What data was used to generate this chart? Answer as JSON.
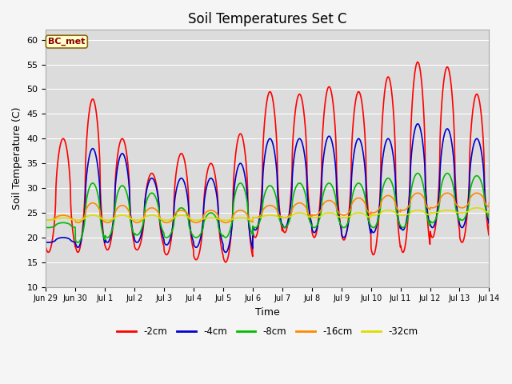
{
  "title": "Soil Temperatures Set C",
  "xlabel": "Time",
  "ylabel": "Soil Temperature (C)",
  "ylim": [
    10,
    62
  ],
  "yticks": [
    10,
    15,
    20,
    25,
    30,
    35,
    40,
    45,
    50,
    55,
    60
  ],
  "annotation": "BC_met",
  "plot_bg_color": "#dcdcdc",
  "fig_bg_color": "#f5f5f5",
  "series_colors": {
    "-2cm": "#ff0000",
    "-4cm": "#0000cc",
    "-8cm": "#00bb00",
    "-16cm": "#ff8800",
    "-32cm": "#dddd00"
  },
  "xtick_labels": [
    "Jun 29",
    "Jun 30",
    "Jul 1",
    "Jul 2",
    "Jul 3",
    "Jul 4",
    "Jul 5",
    "Jul 6",
    "Jul 7",
    "Jul 8",
    "Jul 9",
    "Jul 10",
    "Jul 11",
    "Jul 12",
    "Jul 13",
    "Jul 14"
  ],
  "peaks_2cm": [
    40,
    48,
    40,
    33,
    37,
    35,
    41,
    49.5,
    49,
    50.5,
    49.5,
    52.5,
    55.5,
    54.5,
    49,
    49
  ],
  "mins_2cm": [
    17,
    17,
    17.5,
    17.5,
    16.5,
    15.5,
    15,
    20,
    21,
    20,
    19.5,
    16.5,
    17,
    20,
    19,
    24
  ],
  "peaks_4cm": [
    20,
    38,
    37,
    32,
    32,
    32,
    35,
    40,
    40,
    40.5,
    40,
    40,
    43,
    42,
    40,
    40
  ],
  "mins_4cm": [
    19,
    18,
    19,
    19,
    18.5,
    18,
    17,
    21.5,
    22,
    21,
    20,
    21,
    21.5,
    22,
    22,
    24
  ],
  "peaks_8cm": [
    23,
    31,
    30.5,
    29,
    26,
    25,
    31,
    30.5,
    31,
    31,
    31,
    32,
    33,
    33,
    32.5,
    32
  ],
  "mins_8cm": [
    22,
    19,
    20,
    20.5,
    20,
    20,
    20,
    22,
    22,
    22,
    22,
    22,
    22,
    23,
    23.5,
    25
  ],
  "peaks_16cm": [
    24.5,
    27,
    26.5,
    26,
    25.5,
    25.5,
    25.5,
    26.5,
    27,
    27.5,
    28,
    28.5,
    29,
    29,
    29,
    29
  ],
  "mins_16cm": [
    23.5,
    23,
    23,
    23,
    23,
    23,
    23,
    24,
    24,
    24.5,
    24.5,
    25,
    25.5,
    26,
    26,
    27
  ],
  "peaks_32cm": [
    24,
    24.5,
    24.5,
    24.5,
    24.5,
    24,
    24,
    24.5,
    25,
    25,
    25,
    25.5,
    25.5,
    25.5,
    26,
    26
  ],
  "mins_32cm": [
    23.5,
    23.5,
    23.5,
    23.5,
    23.5,
    23.5,
    23.5,
    24,
    24,
    24,
    24,
    24.5,
    24.5,
    25,
    25,
    25.5
  ]
}
